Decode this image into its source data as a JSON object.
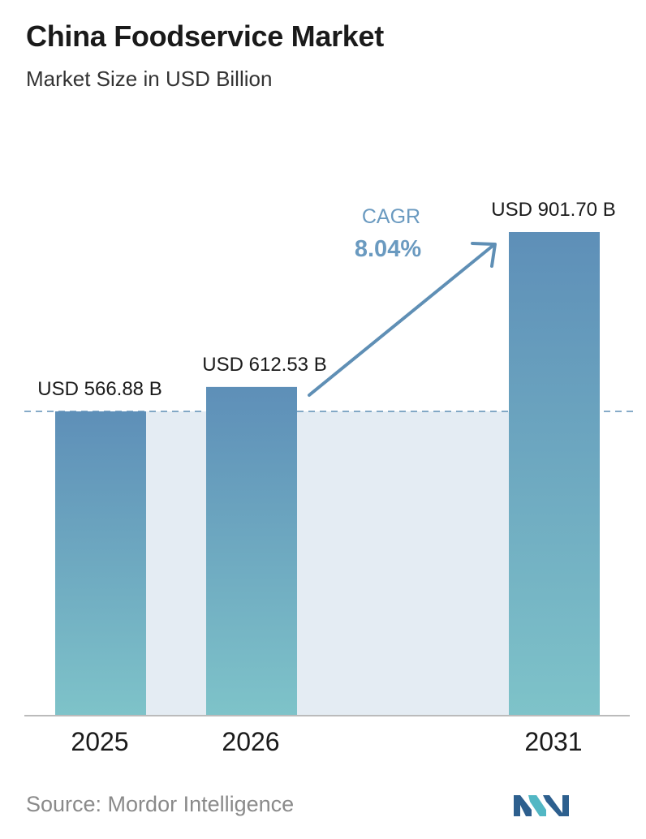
{
  "header": {
    "title": "China Foodservice Market",
    "subtitle": "Market Size in USD Billion"
  },
  "chart_data": {
    "type": "bar",
    "categories": [
      "2025",
      "2026",
      "2031"
    ],
    "values": [
      566.88,
      612.53,
      901.7
    ],
    "data_labels": [
      "USD 566.88 B",
      "USD 612.53 B",
      "USD 901.70 B"
    ],
    "title": "China Foodservice Market",
    "subtitle": "Market Size in USD Billion",
    "xlabel": "",
    "ylabel": "",
    "annotation": {
      "label": "CAGR",
      "value": "8.04%"
    },
    "grid": false,
    "reference_line": "dashed line at first value",
    "colors": {
      "bar_top": "#5e8fb8",
      "bar_bottom": "#7ec3c9",
      "shade": "#e4ecf3",
      "arrow": "#5f8fb5",
      "axis": "#bbbbbb"
    }
  },
  "footer": {
    "source": "Source:  Mordor Intelligence",
    "logo_icon": "mordor-intelligence-logo-icon",
    "logo_colors": [
      "#2d5f8e",
      "#52b7c4"
    ]
  }
}
